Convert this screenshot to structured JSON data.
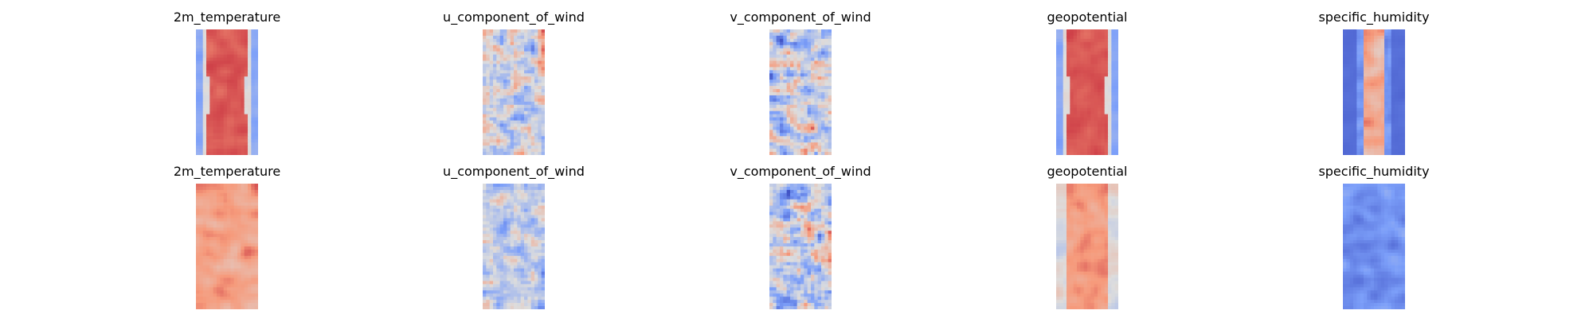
{
  "chart_data": {
    "type": "heatmap",
    "colormap": "coolwarm",
    "axes": "off",
    "rows": [
      {
        "panels": [
          {
            "title": "2m_temperature",
            "pattern": "central_warm_band"
          },
          {
            "title": "u_component_of_wind",
            "pattern": "streaky_vertical"
          },
          {
            "title": "v_component_of_wind",
            "pattern": "mottled"
          },
          {
            "title": "geopotential",
            "pattern": "central_warm_band"
          },
          {
            "title": "specific_humidity",
            "pattern": "narrow_moist_core"
          }
        ]
      },
      {
        "panels": [
          {
            "title": "2m_temperature",
            "pattern": "warm_mottled"
          },
          {
            "title": "u_component_of_wind",
            "pattern": "streaky_vertical_faint"
          },
          {
            "title": "v_component_of_wind",
            "pattern": "mottled"
          },
          {
            "title": "geopotential",
            "pattern": "warm_mottled_band"
          },
          {
            "title": "specific_humidity",
            "pattern": "cool_mottled"
          }
        ]
      }
    ]
  }
}
